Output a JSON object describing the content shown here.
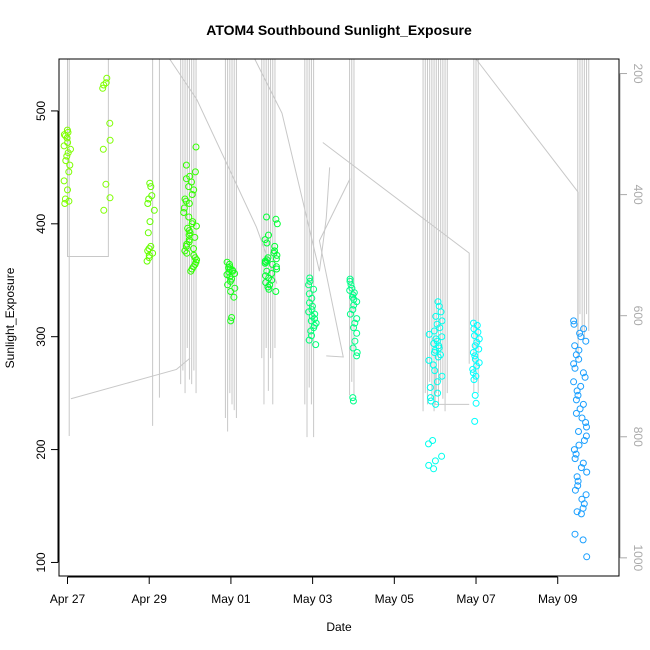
{
  "chart_data": {
    "type": "scatter",
    "title": "ATOM4 Southbound Sunlight_Exposure",
    "xlabel": "Date",
    "ylabel": "Sunlight_Exposure",
    "x_axis": {
      "type": "date",
      "range": [
        "2024-04-26T19:00",
        "2024-05-10T12:00"
      ],
      "ticks": [
        {
          "date": "2024-04-27",
          "label": "Apr 27"
        },
        {
          "date": "2024-04-29",
          "label": "Apr 29"
        },
        {
          "date": "2024-05-01",
          "label": "May 01"
        },
        {
          "date": "2024-05-03",
          "label": "May 03"
        },
        {
          "date": "2024-05-05",
          "label": "May 05"
        },
        {
          "date": "2024-05-07",
          "label": "May 07"
        },
        {
          "date": "2024-05-09",
          "label": "May 09"
        }
      ]
    },
    "y_axis": {
      "range": [
        88,
        546
      ],
      "ticks": [
        100,
        200,
        300,
        400,
        500
      ]
    },
    "y2_axis": {
      "range": [
        1030,
        176
      ],
      "reversed": true,
      "ticks": [
        200,
        400,
        600,
        800,
        1000
      ],
      "color": "#aaaaaa"
    },
    "grid": false,
    "legend": "none",
    "series": [
      {
        "date": "2024-04-27",
        "color": "#7fff00",
        "values": [
          483,
          481,
          479,
          478,
          476,
          472,
          469,
          466,
          463,
          460,
          456,
          452,
          446,
          438,
          430,
          422,
          420,
          418
        ]
      },
      {
        "date": "2024-04-28",
        "color": "#7fff00",
        "values": [
          529,
          525,
          523,
          520,
          489,
          474,
          466,
          435,
          423,
          412
        ]
      },
      {
        "date": "2024-04-29",
        "color": "#66ff00",
        "values": [
          436,
          433,
          425,
          422,
          418,
          412,
          402,
          392,
          380,
          378,
          376,
          374,
          372,
          370,
          367
        ]
      },
      {
        "date": "2024-04-30",
        "color": "#33ff00",
        "values": [
          468,
          452,
          446,
          442,
          440,
          437,
          433,
          430,
          426,
          422,
          420,
          418,
          414,
          410,
          406,
          402,
          400,
          398,
          396,
          394,
          392,
          390,
          388,
          386,
          384,
          382,
          380,
          378,
          376,
          374,
          372,
          370,
          368,
          366,
          364,
          362,
          360,
          358
        ]
      },
      {
        "date": "2024-05-01",
        "color": "#1aff1a",
        "values": [
          366,
          364,
          362,
          361,
          360,
          359,
          358,
          357,
          356,
          355,
          353,
          351,
          349,
          346,
          343,
          340,
          335,
          317,
          314
        ]
      },
      {
        "date": "2024-05-02",
        "color": "#00ff33",
        "values": [
          406,
          404,
          400,
          390,
          386,
          383,
          380,
          376,
          374,
          372,
          370,
          369,
          368,
          367,
          366,
          365,
          364,
          362,
          360,
          358,
          356,
          354,
          352,
          350,
          348,
          346,
          344,
          342,
          340
        ]
      },
      {
        "date": "2024-05-03",
        "color": "#00ff77",
        "values": [
          352,
          349,
          346,
          342,
          338,
          334,
          330,
          327,
          324,
          322,
          320,
          318,
          316,
          314,
          312,
          310,
          308,
          305,
          301,
          297,
          293
        ]
      },
      {
        "date": "2024-05-04",
        "color": "#00ff88",
        "values": [
          351,
          349,
          346,
          343,
          341,
          339,
          337,
          335,
          333,
          331,
          328,
          324,
          320,
          316,
          312,
          308,
          303,
          296,
          290,
          286,
          283,
          246,
          243
        ]
      },
      {
        "date": "2024-05-06",
        "color": "#00ffee",
        "values": [
          331,
          327,
          322,
          318,
          314,
          311,
          308,
          305,
          302,
          300,
          298,
          296,
          294,
          292,
          290,
          288,
          286,
          284,
          282,
          279,
          275,
          270,
          265,
          260,
          255,
          250,
          246,
          243,
          240,
          208,
          205,
          194,
          190,
          186,
          183
        ]
      },
      {
        "date": "2024-05-07",
        "color": "#00ffff",
        "values": [
          312,
          310,
          307,
          304,
          301,
          298,
          295,
          292,
          289,
          286,
          283,
          280,
          277,
          274,
          271,
          268,
          265,
          262,
          248,
          241,
          225
        ]
      },
      {
        "date": "2024-05-09",
        "color": "#1a9fff",
        "values": [
          314,
          311,
          307,
          303,
          300,
          296,
          292,
          288,
          284,
          280,
          276,
          272,
          268,
          264,
          260,
          256,
          252,
          248,
          244,
          240,
          236,
          232,
          228,
          224,
          220,
          216,
          212,
          208,
          204,
          200,
          196,
          192,
          188,
          184,
          180,
          176,
          172,
          168,
          164,
          160,
          156,
          152,
          148,
          145,
          143,
          125,
          120,
          105
        ]
      }
    ]
  }
}
